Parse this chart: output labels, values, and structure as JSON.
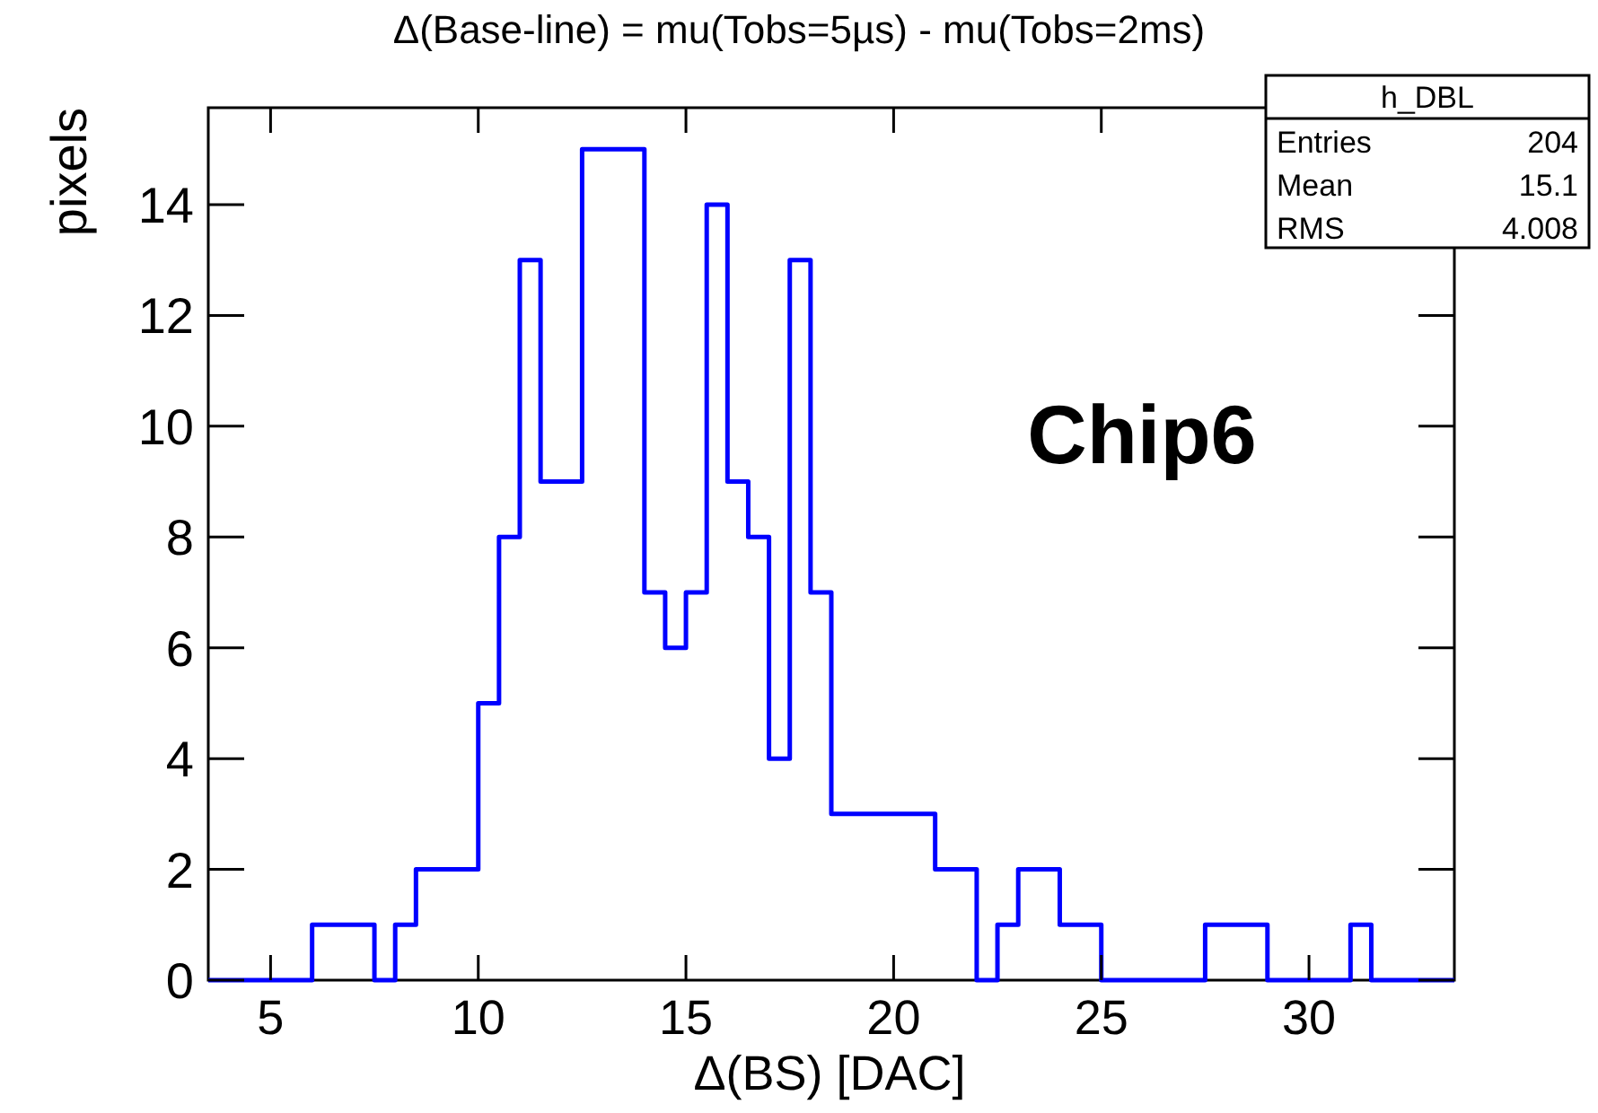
{
  "chart_data": {
    "type": "histogram",
    "title": "Δ(Base-line) = mu(Tobs=5µs) - mu(Tobs=2ms)",
    "xlabel": "Δ(BS) [DAC]",
    "ylabel": "pixels",
    "bins": [
      3.5,
      4,
      4.5,
      5,
      5.5,
      6,
      6.5,
      7,
      7.5,
      8,
      8.5,
      9,
      9.5,
      10,
      10.5,
      11,
      11.5,
      12,
      12.5,
      13,
      13.5,
      14,
      14.5,
      15,
      15.5,
      16,
      16.5,
      17,
      17.5,
      18,
      18.5,
      19,
      19.5,
      20,
      20.5,
      21,
      21.5,
      22,
      22.5,
      23,
      23.5,
      24,
      24.5,
      25,
      25.5,
      26,
      26.5,
      27,
      27.5,
      28,
      28.5,
      29,
      29.5,
      30,
      30.5,
      31,
      31.5,
      32,
      32.5,
      33,
      33.5
    ],
    "values": [
      0,
      0,
      0,
      0,
      0,
      1,
      1,
      1,
      0,
      1,
      2,
      2,
      2,
      5,
      8,
      13,
      9,
      9,
      15,
      15,
      15,
      7,
      6,
      7,
      14,
      9,
      8,
      4,
      13,
      7,
      3,
      3,
      3,
      3,
      3,
      2,
      2,
      0,
      1,
      2,
      2,
      1,
      1,
      0,
      0,
      0,
      0,
      0,
      1,
      1,
      1,
      0,
      0,
      0,
      0,
      1,
      0,
      0,
      0,
      0
    ],
    "color": "#0000ff",
    "xlim": [
      3.5,
      33.5
    ],
    "ylim": [
      0,
      15.75
    ],
    "xticks": [
      5,
      10,
      15,
      20,
      25,
      30
    ],
    "yticks": [
      0,
      2,
      4,
      6,
      8,
      10,
      12,
      14
    ],
    "grid": false,
    "annotations": [
      "Chip6",
      "h_DBL",
      "Entries",
      "204",
      "Mean",
      "15.1",
      "RMS",
      "4.008"
    ]
  }
}
